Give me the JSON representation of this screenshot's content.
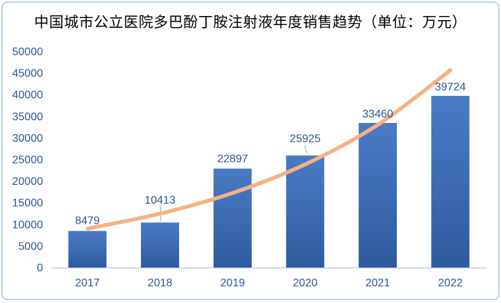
{
  "window": {
    "background": "#ffffff",
    "border_color": "#b9d3ec"
  },
  "chart_data": {
    "type": "bar",
    "title": "中国城市公立医院多巴酚丁胺注射液年度销售趋势（单位：万元）",
    "unit": "万元",
    "categories": [
      "2017",
      "2018",
      "2019",
      "2020",
      "2021",
      "2022"
    ],
    "values": [
      8479,
      10413,
      22897,
      25925,
      33460,
      39724
    ],
    "data_labels": [
      "8479",
      "10413",
      "22897",
      "25925",
      "33460",
      "39724"
    ],
    "trendline": {
      "type": "exponential",
      "fitted_values": [
        9011,
        12465,
        17243,
        23881,
        33017,
        45655
      ]
    },
    "xlabel": "",
    "ylabel": "",
    "ylim": [
      0,
      50000
    ],
    "ytick_interval": 5000,
    "yticks": [
      0,
      5000,
      10000,
      15000,
      20000,
      25000,
      30000,
      35000,
      40000,
      45000,
      50000
    ],
    "grid": false,
    "legend_position": "none",
    "colors": {
      "bar_gradient_top": "#4a7bc5",
      "bar_gradient_bottom": "#2d5b9d",
      "trendline": "#f5b183",
      "label_text": "#2f5597",
      "axis_line": "#c9d9ec",
      "leader_line": "#9dc3e6",
      "title_text": "#000000"
    }
  }
}
